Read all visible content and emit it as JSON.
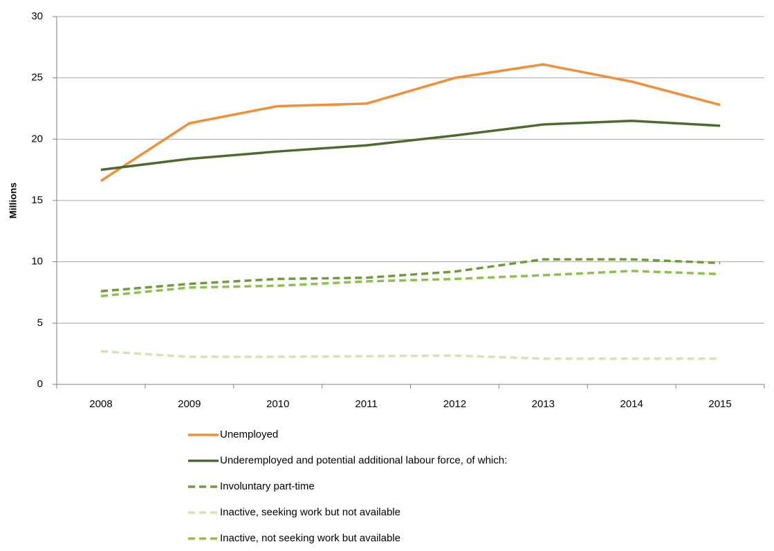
{
  "chart_data": {
    "type": "line",
    "y_label": "Millions",
    "categories": [
      "2008",
      "2009",
      "2010",
      "2011",
      "2012",
      "2013",
      "2014",
      "2015"
    ],
    "ylim": [
      0,
      30
    ],
    "yticks": [
      0,
      5,
      10,
      15,
      20,
      25,
      30
    ],
    "grid": true,
    "series": [
      {
        "name": "Unemployed",
        "color": "#f28e36",
        "dashed": false,
        "values": [
          16.6,
          21.3,
          22.7,
          22.9,
          25.0,
          26.1,
          24.7,
          22.8
        ]
      },
      {
        "name": "Underemployed and potential additional labour force, of which:",
        "color": "#4e6b2f",
        "dashed": false,
        "values": [
          17.5,
          18.4,
          19.0,
          19.5,
          20.3,
          21.2,
          21.5,
          21.1
        ]
      },
      {
        "name": "Involuntary part-time",
        "color": "#6e9b3a",
        "dashed": true,
        "values": [
          7.6,
          8.2,
          8.6,
          8.7,
          9.2,
          10.2,
          10.2,
          9.9
        ]
      },
      {
        "name": "Inactive, seeking work but not available",
        "color": "#d2e5b0",
        "dashed": true,
        "values": [
          2.7,
          2.25,
          2.25,
          2.3,
          2.35,
          2.1,
          2.1,
          2.1
        ]
      },
      {
        "name": "Inactive, not seeking work but available",
        "color": "#8dc04b",
        "dashed": true,
        "values": [
          7.2,
          7.9,
          8.05,
          8.4,
          8.6,
          8.9,
          9.25,
          9.0
        ]
      }
    ]
  }
}
